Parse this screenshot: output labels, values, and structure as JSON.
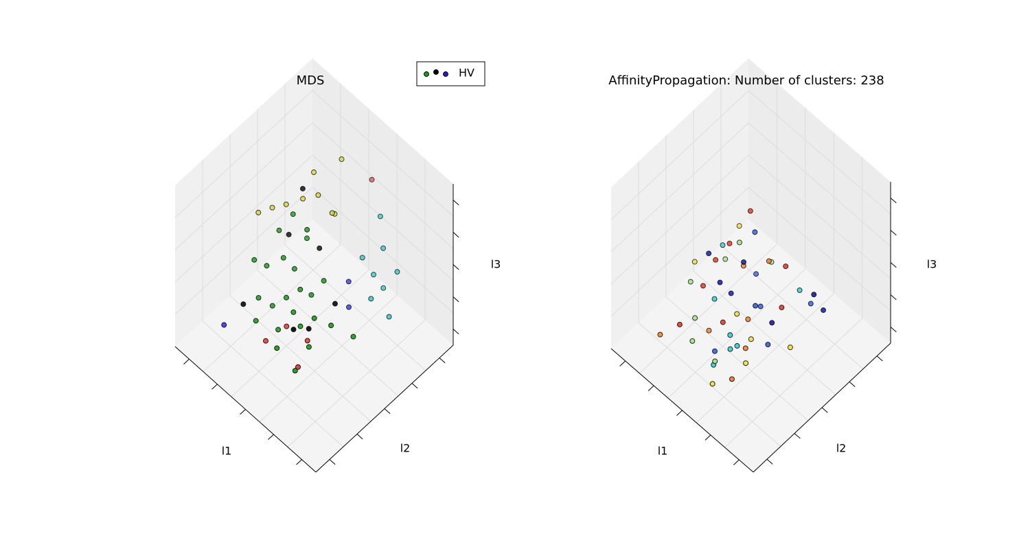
{
  "chart_data": [
    {
      "type": "scatter3d",
      "title": "MDS",
      "xlabel": "l1",
      "ylabel": "l2",
      "zlabel": "l3",
      "xlim": [
        0,
        1
      ],
      "ylim": [
        0,
        1
      ],
      "zlim": [
        0,
        1
      ],
      "legend": "upper right",
      "series": [
        {
          "name": "HV",
          "legend_colors": [
            "#1a9a1a",
            "#000000",
            "#2020c0"
          ],
          "x": [
            0.4,
            0.35,
            0.45,
            0.3,
            0.5,
            0.42,
            0.38,
            0.28,
            0.48,
            0.55,
            0.33,
            0.45,
            0.52,
            0.36,
            0.3,
            0.4,
            0.58,
            0.25,
            0.47,
            0.62,
            0.43,
            0.35,
            0.56,
            0.7,
            0.32,
            0.5,
            0.44,
            0.6,
            0.27,
            0.54,
            0.38,
            0.42,
            0.35,
            0.48,
            0.3,
            0.4,
            0.55,
            0.25,
            0.5,
            0.5,
            0.6,
            0.62,
            0.55,
            0.65,
            0.7,
            0.58,
            0.72,
            0.66,
            0.45,
            0.6,
            0.4,
            0.5,
            0.55,
            0.25,
            0.55,
            0.6
          ],
          "y": [
            0.6,
            0.65,
            0.55,
            0.7,
            0.6,
            0.68,
            0.52,
            0.62,
            0.5,
            0.55,
            0.75,
            0.72,
            0.45,
            0.58,
            0.55,
            0.45,
            0.62,
            0.68,
            0.62,
            0.5,
            0.48,
            0.5,
            0.7,
            0.42,
            0.5,
            0.65,
            0.4,
            0.45,
            0.78,
            0.58,
            0.46,
            0.5,
            0.55,
            0.45,
            0.6,
            0.4,
            0.42,
            0.65,
            0.35,
            0.3,
            0.17,
            0.12,
            0.2,
            0.15,
            0.1,
            0.1,
            0.18,
            0.25,
            0.65,
            0.72,
            0.75,
            0.08,
            0.6,
            0.9,
            0.3,
            0.35
          ],
          "z": [
            0.3,
            0.25,
            0.35,
            0.3,
            0.2,
            0.18,
            0.4,
            0.42,
            0.3,
            0.25,
            0.22,
            0.12,
            0.38,
            0.5,
            0.6,
            0.55,
            0.15,
            0.48,
            0.28,
            0.22,
            0.65,
            0.7,
            0.05,
            0.15,
            0.55,
            0.22,
            0.48,
            0.3,
            0.3,
            0.2,
            0.85,
            0.85,
            0.8,
            0.88,
            0.78,
            0.92,
            0.8,
            0.75,
            0.7,
            1.0,
            0.26,
            0.4,
            0.35,
            0.2,
            0.3,
            0.55,
            0.1,
            0.22,
            0.2,
            0.12,
            0.15,
            0.7,
            0.15,
            0.25,
            0.28,
            0.2
          ],
          "colors": [
            "#1a9a1a",
            "#1a9a1a",
            "#1a9a1a",
            "#1a9a1a",
            "#1a9a1a",
            "#1a9a1a",
            "#1a9a1a",
            "#1a9a1a",
            "#1a9a1a",
            "#1a9a1a",
            "#1a9a1a",
            "#1a9a1a",
            "#1a9a1a",
            "#1a9a1a",
            "#1a9a1a",
            "#1a9a1a",
            "#1a9a1a",
            "#1a9a1a",
            "#1a9a1a",
            "#1a9a1a",
            "#1a9a1a",
            "#1a9a1a",
            "#1a9a1a",
            "#1a9a1a",
            "#000000",
            "#000000",
            "#000000",
            "#000000",
            "#000000",
            "#000000",
            "#000000",
            "#d6d63a",
            "#d6d63a",
            "#d6d63a",
            "#d6d63a",
            "#d6d63a",
            "#d6d63a",
            "#d6d63a",
            "#d6d63a",
            "#d6d63a",
            "#2fc4c4",
            "#2fc4c4",
            "#2fc4c4",
            "#2fc4c4",
            "#2fc4c4",
            "#2fc4c4",
            "#2fc4c4",
            "#2fc4c4",
            "#e04040",
            "#e04040",
            "#e04040",
            "#e04040",
            "#e04040",
            "#3a3ae0",
            "#3a3ae0",
            "#3a3ae0"
          ]
        }
      ]
    },
    {
      "type": "scatter3d",
      "title": "AffinityPropagation: Number of clusters: 238",
      "xlabel": "l1",
      "ylabel": "l2",
      "zlabel": "l3",
      "xlim": [
        0,
        1
      ],
      "ylim": [
        0,
        1
      ],
      "zlim": [
        0,
        1
      ],
      "series": [
        {
          "x": [
            0.4,
            0.35,
            0.45,
            0.3,
            0.5,
            0.42,
            0.38,
            0.28,
            0.48,
            0.55,
            0.33,
            0.45,
            0.52,
            0.36,
            0.3,
            0.4,
            0.58,
            0.25,
            0.47,
            0.62,
            0.43,
            0.35,
            0.56,
            0.7,
            0.32,
            0.5,
            0.44,
            0.6,
            0.27,
            0.54,
            0.38,
            0.42,
            0.35,
            0.48,
            0.3,
            0.4,
            0.55,
            0.25,
            0.5,
            0.65,
            0.68,
            0.72,
            0.6,
            0.2,
            0.52,
            0.46,
            0.36,
            0.58,
            0.75,
            0.62
          ],
          "y": [
            0.6,
            0.65,
            0.55,
            0.7,
            0.6,
            0.68,
            0.52,
            0.62,
            0.5,
            0.55,
            0.75,
            0.72,
            0.45,
            0.58,
            0.55,
            0.45,
            0.62,
            0.68,
            0.62,
            0.5,
            0.48,
            0.5,
            0.7,
            0.42,
            0.5,
            0.65,
            0.4,
            0.45,
            0.78,
            0.58,
            0.46,
            0.5,
            0.55,
            0.45,
            0.6,
            0.4,
            0.42,
            0.65,
            0.35,
            0.3,
            0.25,
            0.2,
            0.35,
            0.85,
            0.8,
            0.72,
            0.62,
            0.55,
            0.3,
            0.4
          ],
          "z": [
            0.15,
            0.1,
            0.2,
            0.18,
            0.08,
            0.05,
            0.25,
            0.3,
            0.15,
            0.12,
            0.1,
            0.02,
            0.22,
            0.35,
            0.42,
            0.38,
            0.05,
            0.35,
            0.14,
            0.1,
            0.45,
            0.52,
            0.0,
            0.08,
            0.4,
            0.1,
            0.32,
            0.18,
            0.18,
            0.08,
            0.62,
            0.58,
            0.55,
            0.65,
            0.5,
            0.68,
            0.5,
            0.45,
            0.4,
            0.3,
            0.2,
            0.15,
            0.45,
            0.12,
            0.02,
            0.05,
            0.28,
            0.35,
            0.35,
            0.25
          ],
          "colors": [
            "#e03020",
            "#f08030",
            "#f0e040",
            "#a0e080",
            "#30d0d0",
            "#3060e0",
            "#1010a0",
            "#e03020",
            "#f08030",
            "#f0e040",
            "#a0e080",
            "#30d0d0",
            "#3060e0",
            "#1010a0",
            "#e03020",
            "#f08030",
            "#f0e040",
            "#a0e080",
            "#30d0d0",
            "#3060e0",
            "#1010a0",
            "#e03020",
            "#f08030",
            "#f0e040",
            "#a0e080",
            "#30d0d0",
            "#3060e0",
            "#1010a0",
            "#e03020",
            "#f08030",
            "#f0e040",
            "#a0e080",
            "#30d0d0",
            "#3060e0",
            "#1010a0",
            "#e03020",
            "#f08030",
            "#f0e040",
            "#a0e080",
            "#30d0d0",
            "#3060e0",
            "#1010a0",
            "#e03020",
            "#f08030",
            "#f0e040",
            "#a0e080",
            "#30d0d0",
            "#3060e0",
            "#1010a0",
            "#e03020"
          ]
        }
      ]
    }
  ]
}
